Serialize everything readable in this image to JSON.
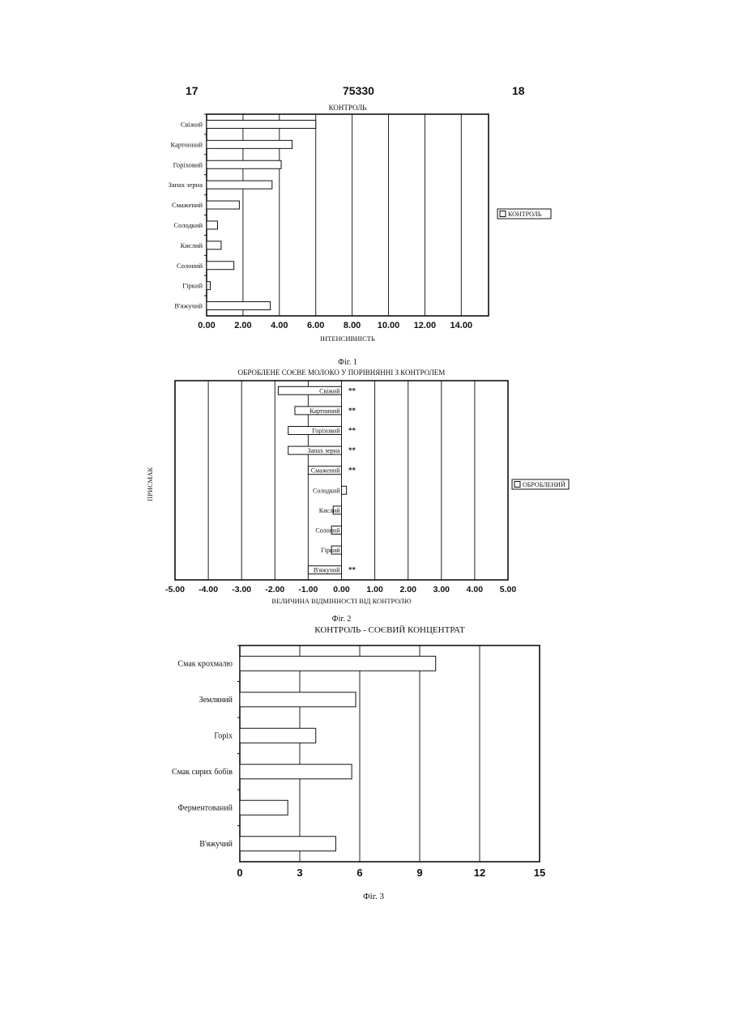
{
  "header": {
    "left_page": "17",
    "patent_number": "75330",
    "right_page": "18"
  },
  "chart_data": [
    {
      "type": "bar",
      "orientation": "horizontal",
      "title": "КОНТРОЛЬ",
      "xlabel": "ІНТЕНСИВНІСТЬ",
      "ylabel": "",
      "caption": "Фіг. 1",
      "categories": [
        "Свіжий",
        "Картонний",
        "Горіховий",
        "Запах зерна",
        "Смажений",
        "Солодкий",
        "Кислий",
        "Солоний",
        "Гіркий",
        "В'яжучий"
      ],
      "series": [
        {
          "name": "КОНТРОЛЬ",
          "values": [
            6.0,
            4.7,
            4.1,
            3.6,
            1.8,
            0.6,
            0.8,
            1.5,
            0.2,
            3.5
          ]
        }
      ],
      "xlim": [
        0,
        15.5
      ],
      "xticks": [
        "0.00",
        "2.00",
        "4.00",
        "6.00",
        "8.00",
        "10.00",
        "12.00",
        "14.00"
      ],
      "grid": true,
      "legend": "right"
    },
    {
      "type": "bar",
      "orientation": "horizontal",
      "title": "ОБРОБЛЕНЕ СОЄВЕ МОЛОКО У ПОРІВНЯННІ З КОНТРОЛЕМ",
      "xlabel": "ВЕЛИЧИНА ВІДМІННОСТІ ВІД КОНТРОЛЮ",
      "ylabel": "ПРИСМАК",
      "caption": "Фіг. 2",
      "categories": [
        "Свіжий",
        "Картонний",
        "Горіховий",
        "Запах зерна",
        "Смажений",
        "Солодкий",
        "Кислий",
        "Солоний",
        "Гіркий",
        "В'яжучий"
      ],
      "series": [
        {
          "name": "ОБРОБЛЕНИЙ",
          "values": [
            -1.9,
            -1.4,
            -1.6,
            -1.6,
            -1.0,
            0.15,
            -0.25,
            -0.3,
            -0.3,
            -1.0
          ]
        }
      ],
      "significance": [
        "**",
        "**",
        "**",
        "**",
        "**",
        "",
        "",
        "",
        "",
        "**"
      ],
      "xlim": [
        -5,
        5
      ],
      "xticks": [
        "-5.00",
        "-4.00",
        "-3.00",
        "-2.00",
        "-1.00",
        "0.00",
        "1.00",
        "2.00",
        "3.00",
        "4.00",
        "5.00"
      ],
      "grid": true,
      "legend": "right"
    },
    {
      "type": "bar",
      "orientation": "horizontal",
      "title": "КОНТРОЛЬ - СОЄВИЙ КОНЦЕНТРАТ",
      "xlabel": "",
      "ylabel": "",
      "caption": "Фіг. 3",
      "categories": [
        "Смак крохмалю",
        "Земляний",
        "Горіх",
        "Смак сирих бобів",
        "Ферментований",
        "В'яжучий"
      ],
      "series": [
        {
          "values": [
            9.8,
            5.8,
            3.8,
            5.6,
            2.4,
            4.8
          ]
        }
      ],
      "xlim": [
        0,
        15
      ],
      "xticks": [
        "0",
        "3",
        "6",
        "9",
        "12",
        "15"
      ],
      "grid": true,
      "legend": "none"
    }
  ]
}
